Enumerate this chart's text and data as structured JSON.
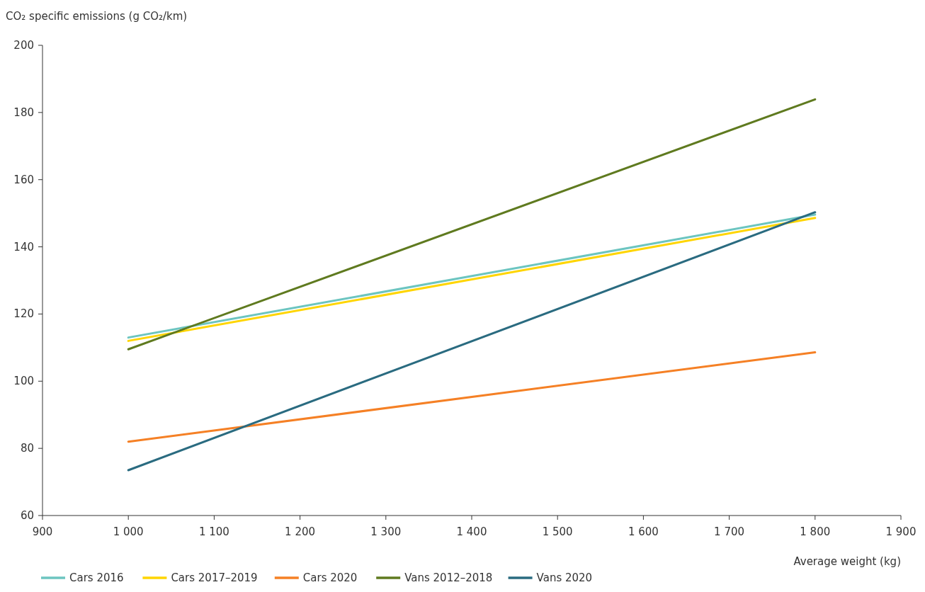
{
  "chart_data": {
    "type": "line",
    "ylabel": "CO₂ specific emissions (g CO₂/km)",
    "xlabel": "Average weight (kg)",
    "x": [
      1000,
      1800
    ],
    "series": [
      {
        "name": "Cars 2016",
        "color": "#6cc5c0",
        "values": [
          113,
          149.6
        ]
      },
      {
        "name": "Cars 2017–2019",
        "color": "#ffd500",
        "values": [
          112,
          148.6
        ]
      },
      {
        "name": "Cars 2020",
        "color": "#f58025",
        "values": [
          82,
          108.6
        ]
      },
      {
        "name": "Vans 2012–2018",
        "color": "#5f7a1f",
        "values": [
          109.5,
          183.9
        ]
      },
      {
        "name": "Vans 2020",
        "color": "#2a6b80",
        "values": [
          73.5,
          150.3
        ]
      }
    ],
    "xlim": [
      900,
      1900
    ],
    "xticks": [
      900,
      {
        "value": 1000,
        "label": "1 000"
      },
      {
        "value": 1100,
        "label": "1 100"
      },
      {
        "value": 1200,
        "label": "1 200"
      },
      {
        "value": 1300,
        "label": "1 300"
      },
      {
        "value": 1400,
        "label": "1 400"
      },
      {
        "value": 1500,
        "label": "1 500"
      },
      {
        "value": 1600,
        "label": "1 600"
      },
      {
        "value": 1700,
        "label": "1 700"
      },
      {
        "value": 1800,
        "label": "1 800"
      },
      {
        "value": 1900,
        "label": "1 900"
      }
    ],
    "ylim": [
      60,
      200
    ],
    "yticks": [
      60,
      80,
      100,
      120,
      140,
      160,
      180,
      200
    ],
    "grid": false,
    "legend": "bottom left",
    "marker": "none",
    "line_style": "solid"
  }
}
